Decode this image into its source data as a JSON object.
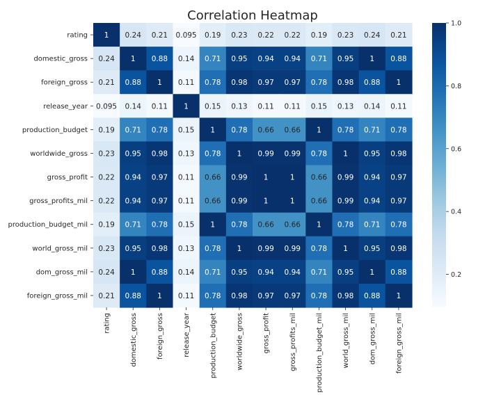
{
  "chart_data": {
    "type": "heatmap",
    "title": "Correlation Heatmap",
    "colormap": "Blues",
    "labels": [
      "rating",
      "domestic_gross",
      "foreign_gross",
      "release_year",
      "production_budget",
      "worldwide_gross",
      "gross_profit",
      "gross_profits_mil",
      "production_budget_mil",
      "world_gross_mil",
      "dom_gross_mil",
      "foreign_gross_mil"
    ],
    "matrix": [
      [
        1,
        0.24,
        0.21,
        0.095,
        0.19,
        0.23,
        0.22,
        0.22,
        0.19,
        0.23,
        0.24,
        0.21
      ],
      [
        0.24,
        1,
        0.88,
        0.14,
        0.71,
        0.95,
        0.94,
        0.94,
        0.71,
        0.95,
        1,
        0.88
      ],
      [
        0.21,
        0.88,
        1,
        0.11,
        0.78,
        0.98,
        0.97,
        0.97,
        0.78,
        0.98,
        0.88,
        1
      ],
      [
        0.095,
        0.14,
        0.11,
        1,
        0.15,
        0.13,
        0.11,
        0.11,
        0.15,
        0.13,
        0.14,
        0.11
      ],
      [
        0.19,
        0.71,
        0.78,
        0.15,
        1,
        0.78,
        0.66,
        0.66,
        1,
        0.78,
        0.71,
        0.78
      ],
      [
        0.23,
        0.95,
        0.98,
        0.13,
        0.78,
        1,
        0.99,
        0.99,
        0.78,
        1,
        0.95,
        0.98
      ],
      [
        0.22,
        0.94,
        0.97,
        0.11,
        0.66,
        0.99,
        1,
        1,
        0.66,
        0.99,
        0.94,
        0.97
      ],
      [
        0.22,
        0.94,
        0.97,
        0.11,
        0.66,
        0.99,
        1,
        1,
        0.66,
        0.99,
        0.94,
        0.97
      ],
      [
        0.19,
        0.71,
        0.78,
        0.15,
        1,
        0.78,
        0.66,
        0.66,
        1,
        0.78,
        0.71,
        0.78
      ],
      [
        0.23,
        0.95,
        0.98,
        0.13,
        0.78,
        1,
        0.99,
        0.99,
        0.78,
        1,
        0.95,
        0.98
      ],
      [
        0.24,
        1,
        0.88,
        0.14,
        0.71,
        0.95,
        0.94,
        0.94,
        0.71,
        0.95,
        1,
        0.88
      ],
      [
        0.21,
        0.88,
        1,
        0.11,
        0.78,
        0.98,
        0.97,
        0.97,
        0.78,
        0.98,
        0.88,
        1
      ]
    ],
    "colorbar": {
      "range": [
        0.095,
        1
      ],
      "ticks": [
        0.2,
        0.4,
        0.6,
        0.8,
        1.0
      ],
      "tick_labels": [
        "0.2",
        "0.4",
        "0.6",
        "0.8",
        "1.0"
      ]
    },
    "grid": false,
    "legend": "colorbar-right"
  }
}
